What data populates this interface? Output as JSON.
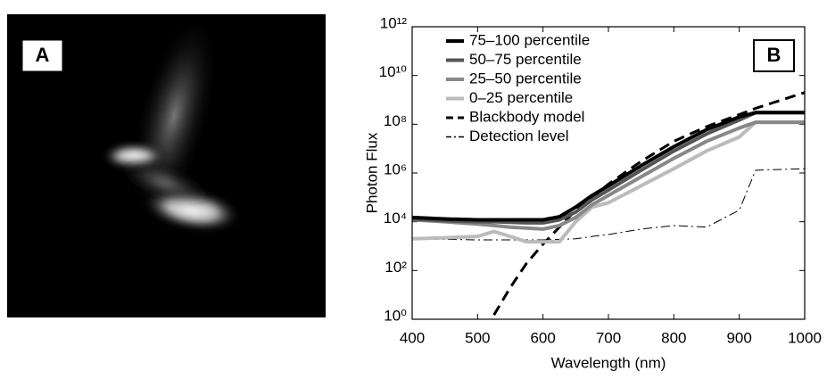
{
  "panel_a": {
    "label": "A"
  },
  "chart_data": {
    "type": "line",
    "panel_label": "B",
    "x_label": "Wavelength (nm)",
    "y_label": "Photon Flux",
    "log_y": true,
    "x": [
      400,
      450,
      500,
      525,
      550,
      575,
      600,
      625,
      650,
      675,
      700,
      750,
      800,
      850,
      900,
      925,
      1000
    ],
    "series": [
      {
        "name": "75–100 percentile",
        "color": "#000000",
        "style": "solid",
        "values": [
          15000,
          13000,
          12000,
          12000,
          12000,
          12000,
          12000,
          16000,
          40000,
          120000,
          300000,
          2000000,
          12000000,
          60000000,
          200000000,
          300000000,
          300000000
        ]
      },
      {
        "name": "50–75 percentile",
        "color": "#555555",
        "style": "solid",
        "values": [
          13000,
          11000,
          10000,
          10000,
          9500,
          9000,
          9000,
          12000,
          25000,
          80000,
          200000,
          1300000,
          8000000,
          40000000,
          150000000,
          300000000,
          300000000
        ]
      },
      {
        "name": "25–50 percentile",
        "color": "#888888",
        "style": "solid",
        "values": [
          12000,
          10000,
          8000,
          7000,
          6000,
          5500,
          5000,
          7000,
          15000,
          50000,
          120000,
          700000,
          4000000,
          20000000,
          70000000,
          120000000,
          120000000
        ]
      },
      {
        "name": "0–25 percentile",
        "color": "#bbbbbb",
        "style": "solid",
        "values": [
          2000,
          2200,
          2500,
          4000,
          2500,
          1500,
          1500,
          1500,
          10000,
          40000,
          60000,
          300000,
          1500000,
          8000000,
          30000000,
          120000000,
          120000000
        ]
      },
      {
        "name": "Blackbody model",
        "color": "#000000",
        "style": "dashed",
        "values": [
          null,
          null,
          null,
          1.5,
          20,
          200,
          1200,
          6000,
          30000,
          100000,
          350000,
          3000000,
          20000000,
          80000000,
          250000000,
          450000000,
          2000000000
        ]
      },
      {
        "name": "Detection level",
        "color": "#000000",
        "style": "dashdot",
        "values": [
          2000,
          1900,
          1800,
          1800,
          1800,
          1800,
          1800,
          1900,
          2000,
          2500,
          3000,
          5000,
          7000,
          6000,
          30000,
          1300000,
          1500000
        ]
      }
    ],
    "xlim": [
      400,
      1000
    ],
    "xticks": [
      400,
      500,
      600,
      700,
      800,
      900,
      1000
    ],
    "ylim": [
      1,
      1000000000000
    ],
    "yticks": [
      {
        "value": 1,
        "label": "10⁰"
      },
      {
        "value": 100,
        "label": "10²"
      },
      {
        "value": 10000,
        "label": "10⁴"
      },
      {
        "value": 1000000,
        "label": "10⁶"
      },
      {
        "value": 100000000,
        "label": "10⁸"
      },
      {
        "value": 10000000000,
        "label": "10¹⁰"
      },
      {
        "value": 1000000000000,
        "label": "10¹²"
      }
    ],
    "legend": "upper left"
  }
}
